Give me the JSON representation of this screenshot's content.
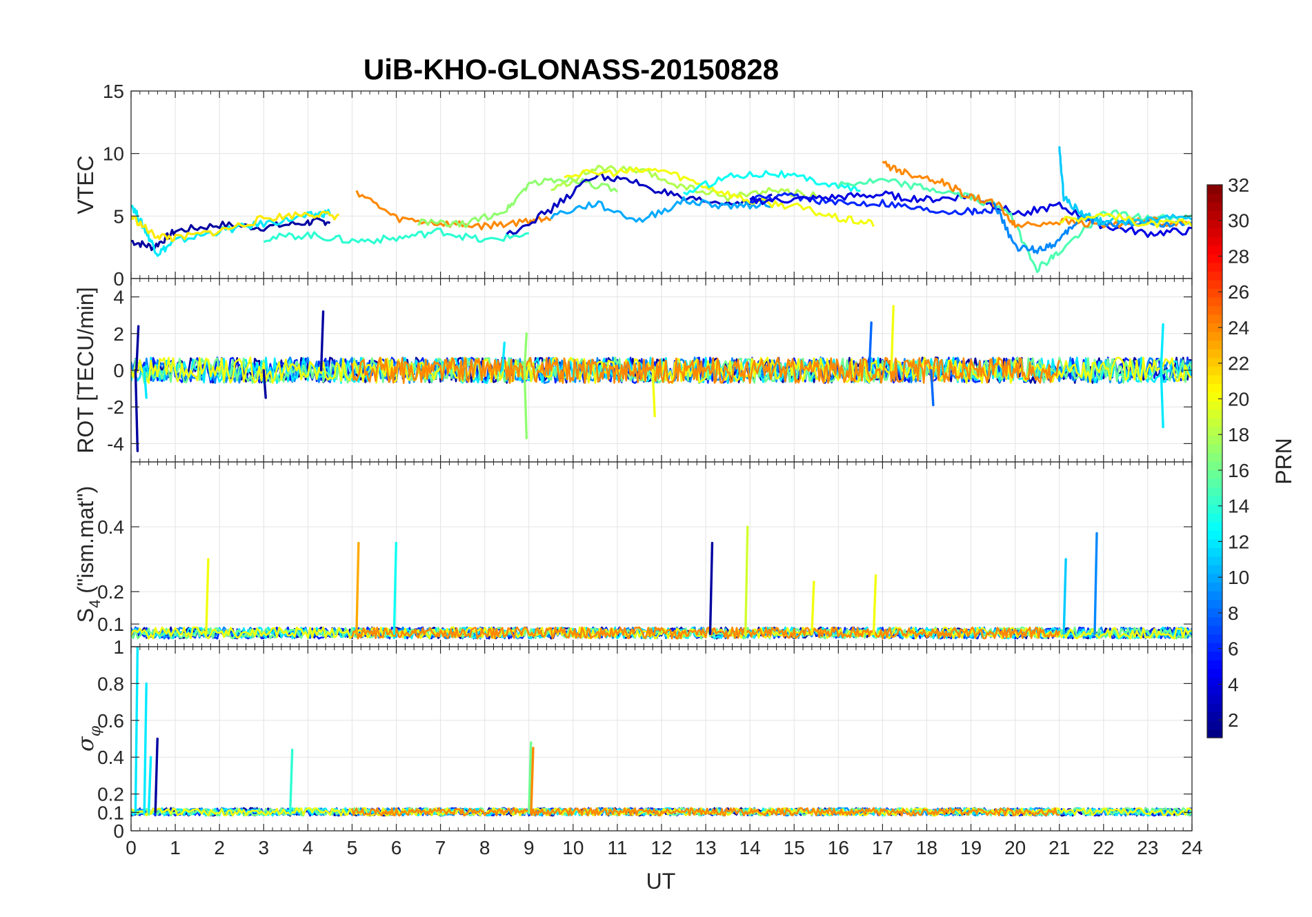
{
  "chart_data": {
    "type": "line",
    "title": "UiB-KHO-GLONASS-20150828",
    "xlabel": "UT",
    "x_ticks": [
      "0",
      "1",
      "2",
      "3",
      "4",
      "5",
      "6",
      "7",
      "8",
      "9",
      "10",
      "11",
      "12",
      "13",
      "14",
      "15",
      "16",
      "17",
      "18",
      "19",
      "20",
      "21",
      "22",
      "23",
      "24"
    ],
    "xlim": [
      0,
      24
    ],
    "grid": true,
    "panels": [
      {
        "id": "vtec",
        "ylabel": "VTEC",
        "ylim": [
          0,
          15
        ],
        "y_ticks": [
          "0",
          "5",
          "10",
          "15"
        ],
        "y_tick_values": [
          0,
          5,
          10,
          15
        ],
        "series": [
          {
            "prn": 2,
            "x": [
              0,
              0.5,
              1,
              2,
              3,
              4,
              4.5
            ],
            "y": [
              3,
              2.5,
              3.8,
              4.3,
              4.1,
              4.5,
              4.6
            ]
          },
          {
            "prn": 12,
            "x": [
              0,
              0.3,
              0.6,
              1,
              2,
              3,
              4,
              4.5
            ],
            "y": [
              6,
              4,
              2,
              3,
              3.8,
              4.4,
              5,
              5.3
            ]
          },
          {
            "prn": 21,
            "x": [
              0,
              0.5,
              1,
              2,
              3,
              4,
              4.7
            ],
            "y": [
              5,
              3.5,
              3.2,
              3.8,
              4.8,
              5.2,
              5
            ]
          },
          {
            "prn": 14,
            "x": [
              3,
              4,
              5,
              6,
              7,
              8,
              9
            ],
            "y": [
              3.2,
              3.5,
              3,
              3.2,
              3.8,
              3,
              3.6
            ]
          },
          {
            "prn": 24,
            "x": [
              5.1,
              6,
              7,
              8,
              9,
              9.5
            ],
            "y": [
              7,
              4.8,
              4.4,
              4.2,
              4.6,
              5
            ]
          },
          {
            "prn": 17,
            "x": [
              6.5,
              7.5,
              8.5,
              9,
              10,
              11
            ],
            "y": [
              4.5,
              4.3,
              5.5,
              7.6,
              8,
              7
            ]
          },
          {
            "prn": 3,
            "x": [
              8.5,
              9.5,
              10.5,
              11.5,
              12.5,
              13.5,
              14.5
            ],
            "y": [
              3.5,
              5.5,
              8.3,
              7.6,
              6.3,
              6,
              6.5
            ]
          },
          {
            "prn": 10,
            "x": [
              9.5,
              10.5,
              11.5,
              12.5,
              13.5,
              14.5
            ],
            "y": [
              5,
              6,
              4.6,
              6.2,
              5.8,
              6
            ]
          },
          {
            "prn": 18,
            "x": [
              9.5,
              10.5,
              11.5,
              12.5,
              13.5,
              14.5,
              15.5
            ],
            "y": [
              7,
              8.8,
              8.6,
              7.3,
              6.5,
              7.1,
              6.6
            ]
          },
          {
            "prn": 20,
            "x": [
              9.8,
              11,
              12,
              13,
              14,
              15,
              16,
              16.8
            ],
            "y": [
              8.3,
              8.5,
              8.7,
              7.4,
              6.2,
              5.8,
              4.8,
              4.4
            ]
          },
          {
            "prn": 13,
            "x": [
              12.5,
              13.5,
              14.5,
              15.5,
              16.5
            ],
            "y": [
              6.8,
              8.2,
              8.5,
              7.8,
              7
            ]
          },
          {
            "prn": 6,
            "x": [
              14,
              15,
              16,
              17,
              18,
              19,
              19.5
            ],
            "y": [
              6.3,
              6.6,
              6,
              6.1,
              5.5,
              5.4,
              5.5
            ]
          },
          {
            "prn": 4,
            "x": [
              14,
              15,
              16,
              17,
              18,
              19,
              20,
              21,
              22,
              23,
              24
            ],
            "y": [
              6.2,
              6.3,
              6.5,
              6.7,
              6.3,
              6.6,
              5.2,
              5.8,
              4.2,
              3.6,
              3.8
            ]
          },
          {
            "prn": 15,
            "x": [
              16,
              17,
              18,
              19,
              19.8,
              20.5,
              21,
              22,
              23,
              24
            ],
            "y": [
              7.5,
              7.8,
              7.2,
              6.5,
              5.6,
              0.8,
              2.1,
              5.3,
              4.8,
              4.9
            ]
          },
          {
            "prn": 24,
            "x": [
              17,
              17.5,
              18.3,
              19,
              19.6,
              20,
              21,
              22,
              23,
              24
            ],
            "y": [
              9.2,
              8.5,
              7.8,
              6.5,
              6,
              4.2,
              4.6,
              4.3,
              4.6,
              4.4
            ]
          },
          {
            "prn": 9,
            "x": [
              19.5,
              20,
              20.5,
              21,
              21.5,
              22,
              23,
              24
            ],
            "y": [
              6.2,
              2.5,
              2.3,
              3,
              5,
              4.4,
              4.5,
              4.3
            ]
          },
          {
            "prn": 11,
            "x": [
              21,
              21.1,
              21.5,
              22,
              23,
              24
            ],
            "y": [
              10.4,
              6.5,
              5.2,
              4.5,
              4.6,
              5
            ]
          },
          {
            "prn": 20,
            "x": [
              21,
              22,
              23,
              24
            ],
            "y": [
              4.6,
              5.2,
              4.3,
              4.5
            ]
          }
        ]
      },
      {
        "id": "rot",
        "ylabel": "ROT [TECU/min]",
        "ylim": [
          -5,
          5
        ],
        "y_ticks": [
          "-4",
          "-2",
          "0",
          "2",
          "4"
        ],
        "y_tick_values": [
          -4,
          -2,
          0,
          2,
          4
        ],
        "baseline": 0,
        "spikes": [
          {
            "prn": 2,
            "x": 0.1,
            "y": -4.4
          },
          {
            "prn": 2,
            "x": 0.12,
            "y": 2.4
          },
          {
            "prn": 12,
            "x": 0.3,
            "y": -1.5
          },
          {
            "prn": 2,
            "x": 3,
            "y": -1.5
          },
          {
            "prn": 2,
            "x": 4.3,
            "y": 3.2
          },
          {
            "prn": 12,
            "x": 8.4,
            "y": 1.5
          },
          {
            "prn": 17,
            "x": 8.9,
            "y": -3.7
          },
          {
            "prn": 17,
            "x": 8.9,
            "y": 2
          },
          {
            "prn": 20,
            "x": 11.8,
            "y": -2.5
          },
          {
            "prn": 8,
            "x": 16.7,
            "y": 2.6
          },
          {
            "prn": 20,
            "x": 17.2,
            "y": 3.5
          },
          {
            "prn": 8,
            "x": 18.1,
            "y": -1.9
          },
          {
            "prn": 12,
            "x": 23.3,
            "y": 2.5
          },
          {
            "prn": 12,
            "x": 23.3,
            "y": -3.1
          }
        ]
      },
      {
        "id": "s4",
        "ylabel": "S_4 (\"ism.mat\")",
        "ylabel_main": "S",
        "ylabel_sub": "4",
        "ylabel_rest": " (\"ism.mat\")",
        "ylim": [
          0.03,
          0.6
        ],
        "y_ticks": [
          "0.1",
          "0.2",
          "0.4"
        ],
        "y_tick_values": [
          0.1,
          0.2,
          0.4
        ],
        "baseline": 0.07,
        "spikes": [
          {
            "prn": 20,
            "x": 1.7,
            "y": 0.3
          },
          {
            "prn": 23,
            "x": 5.1,
            "y": 0.35
          },
          {
            "prn": 13,
            "x": 5.95,
            "y": 0.35
          },
          {
            "prn": 2,
            "x": 13.1,
            "y": 0.35
          },
          {
            "prn": 19,
            "x": 13.9,
            "y": 0.4
          },
          {
            "prn": 20,
            "x": 15.4,
            "y": 0.23
          },
          {
            "prn": 20,
            "x": 16.8,
            "y": 0.25
          },
          {
            "prn": 11,
            "x": 21.1,
            "y": 0.3
          },
          {
            "prn": 9,
            "x": 21.8,
            "y": 0.38
          }
        ]
      },
      {
        "id": "sigma",
        "ylabel": "σ_φ",
        "ylabel_main": "σ",
        "ylabel_sub": "φ",
        "ylim": [
          0,
          1
        ],
        "y_ticks": [
          "0",
          "0.1",
          "0.2",
          "0.4",
          "0.6",
          "0.8",
          "1"
        ],
        "y_tick_values": [
          0,
          0.1,
          0.2,
          0.4,
          0.6,
          0.8,
          1
        ],
        "baseline": 0.1,
        "spikes": [
          {
            "prn": 12,
            "x": 0.1,
            "y": 1
          },
          {
            "prn": 12,
            "x": 0.3,
            "y": 0.8
          },
          {
            "prn": 2,
            "x": 0.55,
            "y": 0.5
          },
          {
            "prn": 12,
            "x": 0.4,
            "y": 0.4
          },
          {
            "prn": 14,
            "x": 3.6,
            "y": 0.44
          },
          {
            "prn": 16,
            "x": 9,
            "y": 0.48
          },
          {
            "prn": 24,
            "x": 9.05,
            "y": 0.45
          }
        ]
      }
    ],
    "colorbar": {
      "label": "PRN",
      "range": [
        1,
        32
      ],
      "ticks": [
        "2",
        "4",
        "6",
        "8",
        "10",
        "12",
        "14",
        "16",
        "18",
        "20",
        "22",
        "24",
        "26",
        "28",
        "30",
        "32"
      ],
      "tick_values": [
        2,
        4,
        6,
        8,
        10,
        12,
        14,
        16,
        18,
        20,
        22,
        24,
        26,
        28,
        30,
        32
      ],
      "colormap": "jet"
    }
  }
}
